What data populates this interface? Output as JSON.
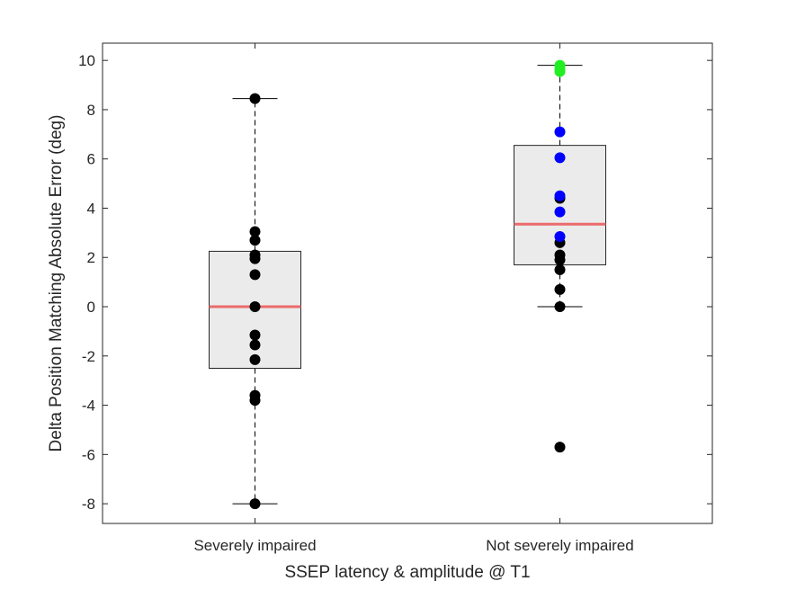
{
  "chart_data": {
    "type": "box",
    "title": "",
    "xlabel": "SSEP latency & amplitude @ T1",
    "ylabel": "Delta Position Matching Absolute Error (deg)",
    "categories": [
      "Severely impaired",
      "Not severely impaired"
    ],
    "ylim": [
      -8.8,
      10.7
    ],
    "yticks": [
      -8,
      -6,
      -4,
      -2,
      0,
      2,
      4,
      6,
      8,
      10
    ],
    "grid": false,
    "colors": {
      "box_fill": "#ebebeb",
      "box_edge": "#262626",
      "median": "#eb6b6b",
      "point_default": "#000000",
      "point_blue": "#0000ff",
      "point_green": "#22ee22"
    },
    "boxes": [
      {
        "category": "Severely impaired",
        "whisker_low": -8.0,
        "q1": -2.5,
        "median": 0.0,
        "q3": 2.25,
        "whisker_high": 8.45
      },
      {
        "category": "Not severely impaired",
        "whisker_low": 0.0,
        "q1": 1.7,
        "median": 3.35,
        "q3": 6.55,
        "whisker_high": 9.8
      }
    ],
    "points": [
      {
        "category": "Severely impaired",
        "values": [
          8.45,
          3.05,
          2.7,
          2.1,
          1.95,
          1.3,
          0.0,
          -1.15,
          -1.55,
          -2.15,
          -3.6,
          -3.8,
          -8.0
        ],
        "color": "point_default"
      },
      {
        "category": "Not severely impaired",
        "values": [
          4.4,
          2.6,
          2.1,
          1.9,
          1.5,
          0.7,
          0.0,
          -5.7
        ],
        "color": "point_default"
      },
      {
        "category": "Not severely impaired",
        "values": [
          7.1,
          6.05,
          4.5,
          3.85,
          2.85
        ],
        "color": "point_blue"
      },
      {
        "category": "Not severely impaired",
        "values": [
          9.8,
          9.65,
          9.55
        ],
        "color": "point_green"
      }
    ]
  }
}
